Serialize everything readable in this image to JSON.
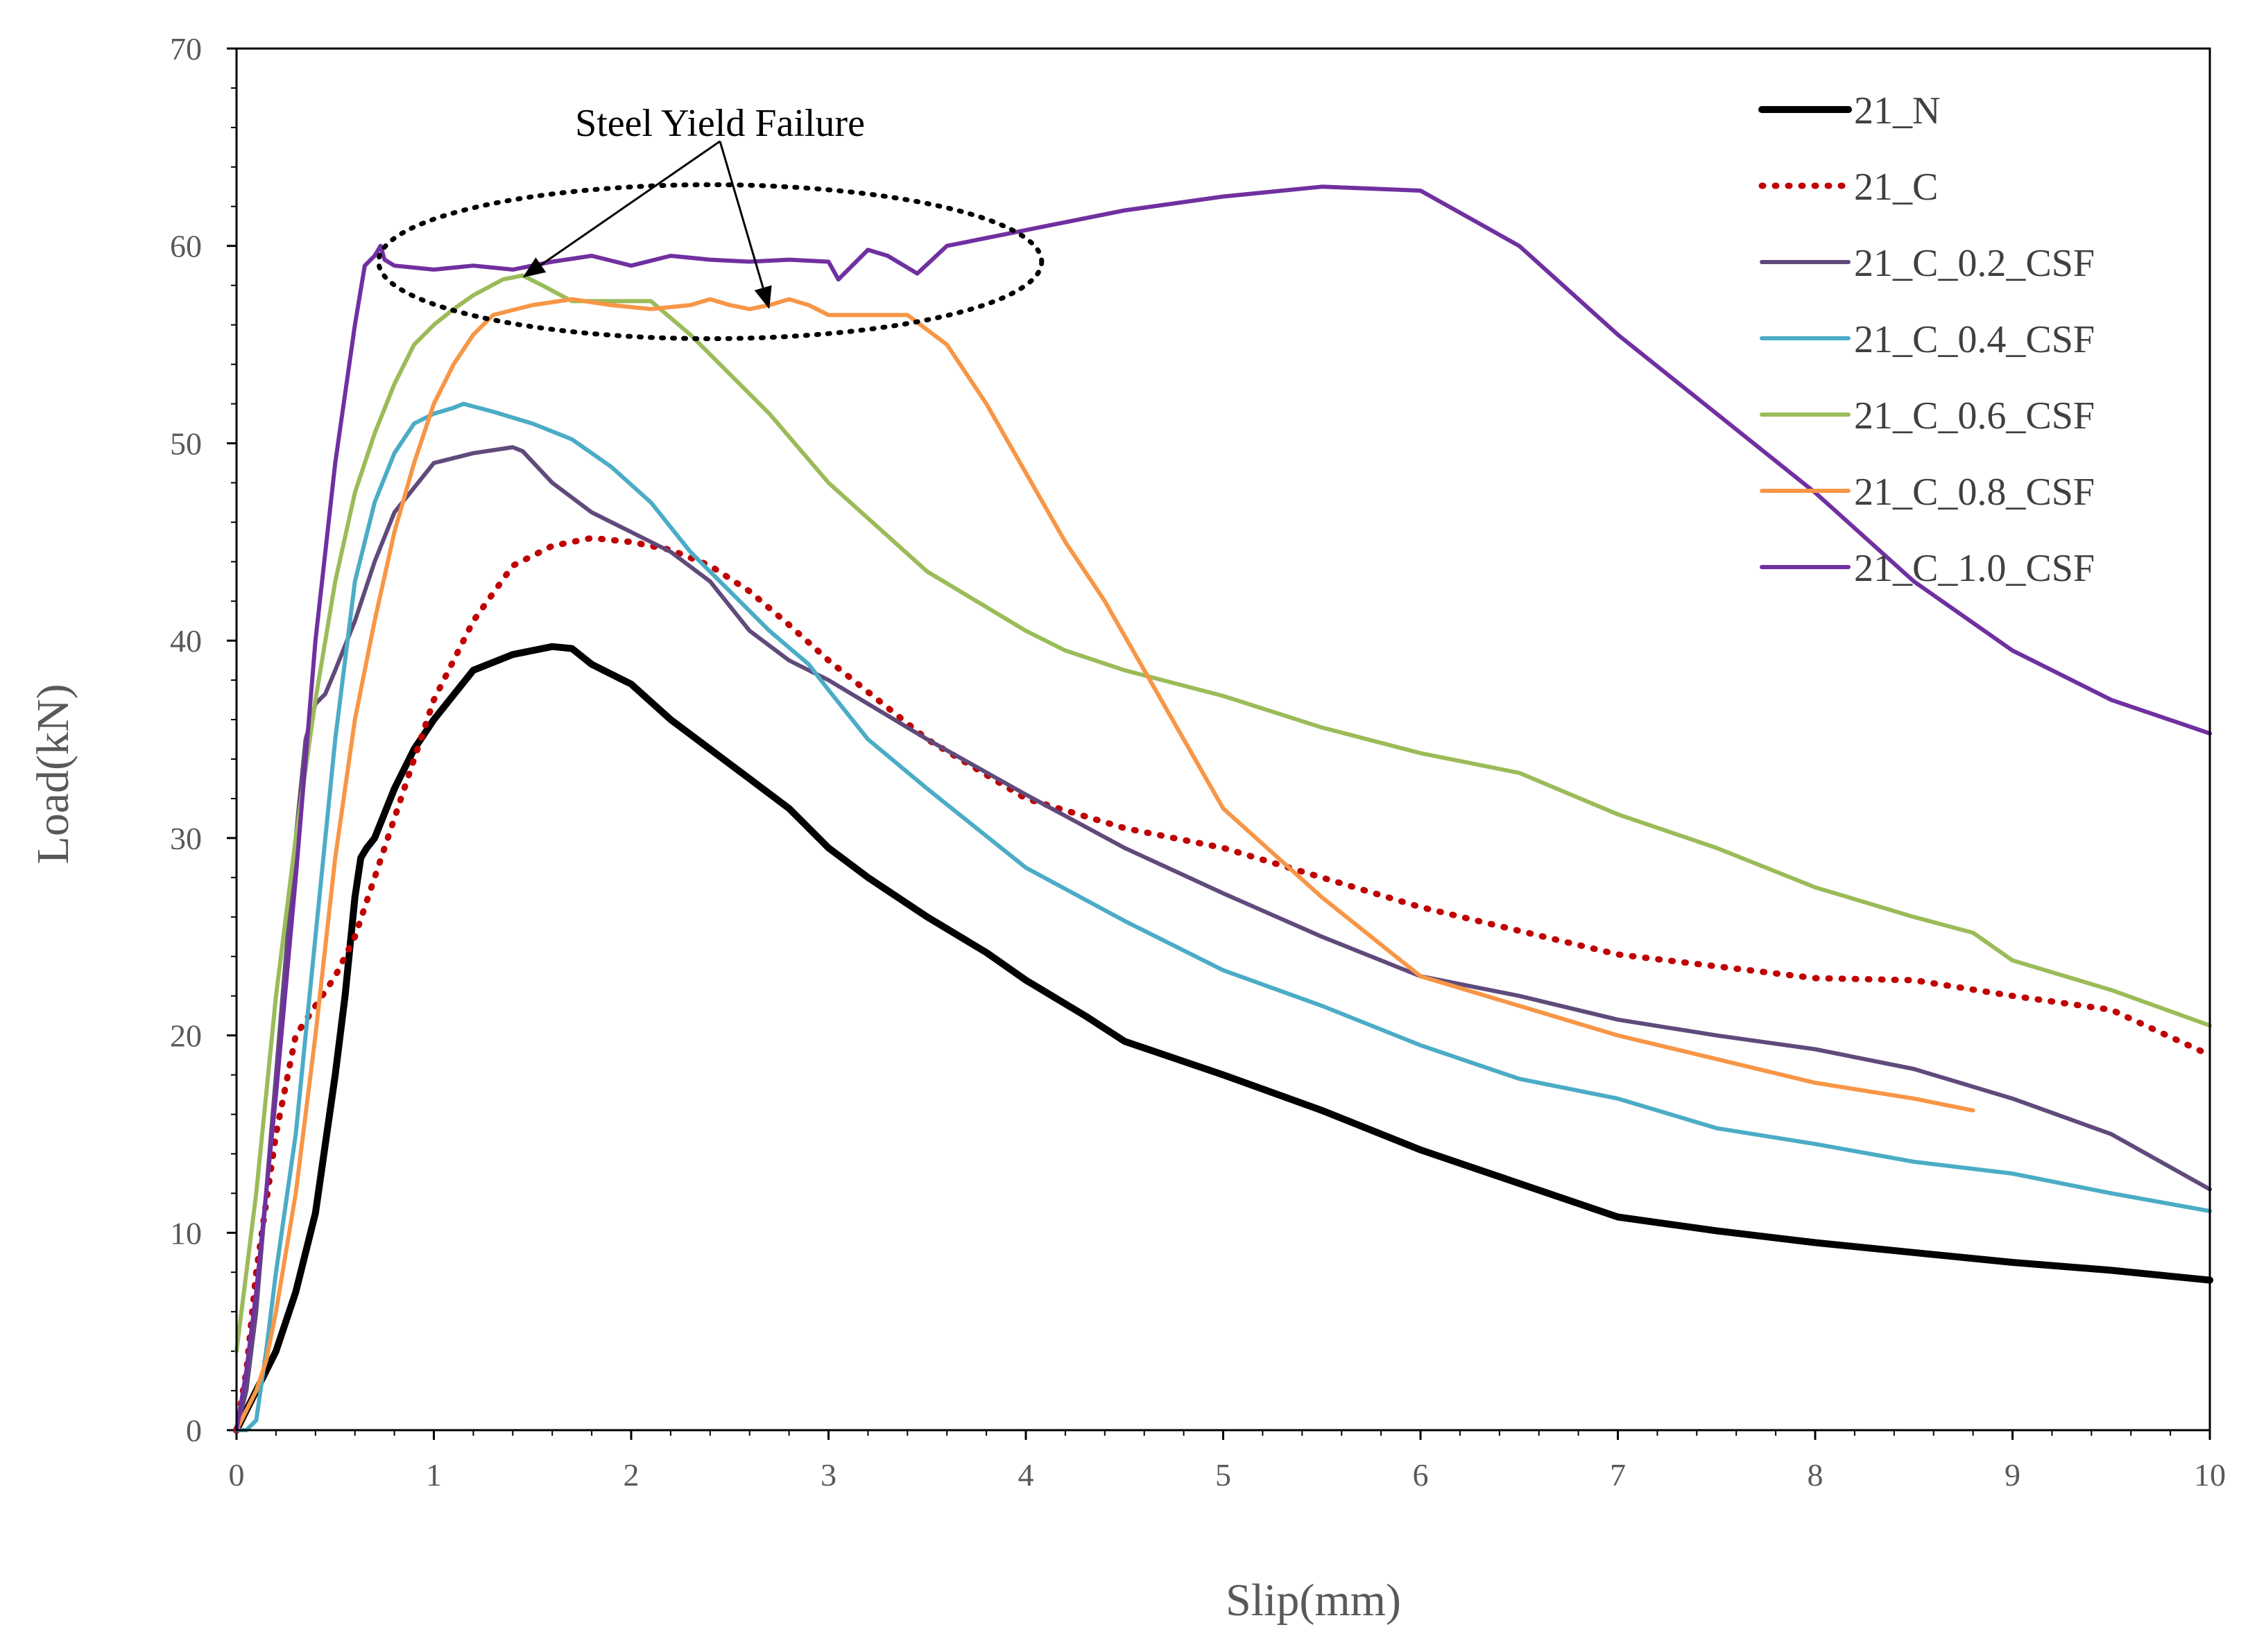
{
  "chart_data": {
    "type": "line",
    "title": "",
    "xlabel": "Slip(mm)",
    "ylabel": "Load(kN)",
    "xlim": [
      0,
      10
    ],
    "ylim": [
      0,
      70
    ],
    "x_ticks": [
      0,
      1,
      2,
      3,
      4,
      5,
      6,
      7,
      8,
      9,
      10
    ],
    "y_ticks": [
      0,
      10,
      20,
      30,
      40,
      50,
      60,
      70
    ],
    "grid": false,
    "legend_position": "top-right",
    "annotation": {
      "text": "Steel Yield Failure",
      "ellipse_center": [
        2.4,
        59.2
      ],
      "ellipse_radius": [
        1.68,
        3.9
      ],
      "arrow_from": [
        2.45,
        65.3
      ],
      "arrow_targets": [
        [
          1.45,
          58.4
        ],
        [
          2.7,
          56.8
        ]
      ]
    },
    "series": [
      {
        "name": "21_N",
        "color": "#000000",
        "style": "solid",
        "width": 10,
        "x": [
          0,
          0.1,
          0.2,
          0.3,
          0.4,
          0.5,
          0.55,
          0.6,
          0.63,
          0.66,
          0.7,
          0.8,
          0.9,
          1.0,
          1.2,
          1.4,
          1.6,
          1.7,
          1.8,
          2.0,
          2.2,
          2.4,
          2.6,
          2.8,
          3.0,
          3.2,
          3.5,
          3.8,
          4.0,
          4.3,
          4.5,
          5.0,
          5.5,
          6.0,
          6.5,
          7.0,
          7.5,
          8.0,
          8.5,
          9.0,
          9.5,
          10.0
        ],
        "y": [
          0,
          2,
          4,
          7,
          11,
          18,
          22,
          27,
          29,
          29.5,
          30,
          32.5,
          34.5,
          36,
          38.5,
          39.3,
          39.7,
          39.6,
          38.8,
          37.8,
          36,
          34.5,
          33,
          31.5,
          29.5,
          28,
          26,
          24.2,
          22.8,
          21,
          19.7,
          18,
          16.2,
          14.2,
          12.5,
          10.8,
          10.1,
          9.5,
          9.0,
          8.5,
          8.1,
          7.6
        ]
      },
      {
        "name": "21_C",
        "color": "#C00000",
        "style": "dotted",
        "width": 9,
        "x": [
          0,
          0.05,
          0.1,
          0.2,
          0.3,
          0.4,
          0.5,
          0.6,
          0.8,
          1.0,
          1.2,
          1.4,
          1.6,
          1.8,
          2.0,
          2.2,
          2.4,
          2.6,
          2.8,
          3.0,
          3.5,
          4.0,
          4.5,
          5.0,
          5.5,
          6.0,
          6.5,
          7.0,
          7.5,
          8.0,
          8.5,
          9.0,
          9.5,
          10.0
        ],
        "y": [
          0,
          3,
          8,
          15,
          20,
          21.5,
          23,
          25,
          31,
          37,
          41,
          43.8,
          44.8,
          45.2,
          45,
          44.6,
          43.8,
          42.5,
          40.8,
          39,
          35,
          32,
          30.5,
          29.5,
          28,
          26.5,
          25.3,
          24.1,
          23.5,
          22.9,
          22.8,
          22,
          21.3,
          19
        ]
      },
      {
        "name": "21_C_0.2_CSF",
        "color": "#604A7B",
        "style": "solid",
        "width": 6,
        "x": [
          0,
          0.05,
          0.1,
          0.2,
          0.3,
          0.35,
          0.4,
          0.45,
          0.5,
          0.6,
          0.7,
          0.8,
          1.0,
          1.2,
          1.4,
          1.45,
          1.6,
          1.8,
          2.0,
          2.2,
          2.4,
          2.6,
          2.8,
          3.0,
          3.5,
          4.0,
          4.5,
          5.0,
          5.5,
          6.0,
          6.5,
          7.0,
          7.5,
          8.0,
          8.5,
          9.0,
          9.5,
          10.0
        ],
        "y": [
          0,
          2,
          6,
          18,
          30,
          35,
          36.8,
          37.3,
          38.5,
          41,
          44,
          46.5,
          49,
          49.5,
          49.8,
          49.6,
          48,
          46.5,
          45.5,
          44.5,
          43,
          40.5,
          39,
          38,
          35,
          32.2,
          29.5,
          27.2,
          25,
          23,
          22,
          20.8,
          20,
          19.3,
          18.3,
          16.8,
          15,
          12.2
        ]
      },
      {
        "name": "21_C_0.4_CSF",
        "color": "#4BACC6",
        "style": "solid",
        "width": 6,
        "x": [
          0,
          0.05,
          0.1,
          0.15,
          0.2,
          0.3,
          0.4,
          0.5,
          0.6,
          0.7,
          0.8,
          0.9,
          1.0,
          1.1,
          1.15,
          1.3,
          1.5,
          1.7,
          1.9,
          2.1,
          2.3,
          2.5,
          2.7,
          2.9,
          3.0,
          3.2,
          3.5,
          4.0,
          4.5,
          5.0,
          5.5,
          6.0,
          6.5,
          7.0,
          7.5,
          8.0,
          8.5,
          9.0,
          9.5,
          10.0
        ],
        "y": [
          0,
          0,
          0.5,
          4,
          8,
          15,
          25,
          35,
          43,
          47,
          49.5,
          51,
          51.5,
          51.8,
          52,
          51.6,
          51,
          50.2,
          48.8,
          47,
          44.5,
          42.5,
          40.5,
          38.8,
          37.5,
          35,
          32.5,
          28.5,
          25.8,
          23.3,
          21.5,
          19.5,
          17.8,
          16.8,
          15.3,
          14.5,
          13.6,
          13,
          12,
          11.1
        ]
      },
      {
        "name": "21_C_0.6_CSF",
        "color": "#9BBB59",
        "style": "solid",
        "width": 6,
        "x": [
          0,
          0.05,
          0.1,
          0.15,
          0.2,
          0.3,
          0.4,
          0.5,
          0.6,
          0.7,
          0.8,
          0.9,
          1.0,
          1.1,
          1.2,
          1.35,
          1.45,
          1.55,
          1.7,
          1.9,
          2.1,
          2.3,
          2.5,
          2.7,
          3.0,
          3.5,
          4.0,
          4.2,
          4.5,
          5.0,
          5.5,
          6.0,
          6.5,
          7.0,
          7.5,
          8.0,
          8.5,
          8.8,
          9.0,
          9.5,
          10.0
        ],
        "y": [
          4,
          8,
          12,
          17,
          22,
          30,
          37,
          43,
          47.5,
          50.5,
          53,
          55,
          56,
          56.8,
          57.5,
          58.3,
          58.5,
          58,
          57.2,
          57.2,
          57.2,
          55.5,
          53.5,
          51.5,
          48,
          43.5,
          40.5,
          39.5,
          38.5,
          37.2,
          35.6,
          34.3,
          33.3,
          31.2,
          29.5,
          27.5,
          26,
          25.2,
          23.8,
          22.3,
          20.5
        ]
      },
      {
        "name": "21_C_0.8_CSF",
        "color": "#F79646",
        "style": "solid",
        "width": 6,
        "x": [
          0,
          0.05,
          0.1,
          0.15,
          0.2,
          0.3,
          0.4,
          0.5,
          0.6,
          0.7,
          0.8,
          0.9,
          1.0,
          1.1,
          1.2,
          1.3,
          1.5,
          1.7,
          1.9,
          2.1,
          2.3,
          2.4,
          2.5,
          2.6,
          2.7,
          2.8,
          2.9,
          3.0,
          3.2,
          3.4,
          3.6,
          3.8,
          4.0,
          4.2,
          4.4,
          4.6,
          4.8,
          5.0,
          5.5,
          6.0,
          6.5,
          7.0,
          7.5,
          8.0,
          8.5,
          8.8
        ],
        "y": [
          0,
          1,
          2,
          3.5,
          6,
          12,
          20,
          29,
          36,
          41,
          45.5,
          49,
          52,
          54,
          55.5,
          56.5,
          57,
          57.3,
          57,
          56.8,
          57,
          57.3,
          57,
          56.8,
          57,
          57.3,
          57,
          56.5,
          56.5,
          56.5,
          55,
          52,
          48.5,
          45,
          42,
          38.5,
          35,
          31.5,
          27,
          23,
          21.5,
          20,
          18.8,
          17.6,
          16.8,
          16.2
        ]
      },
      {
        "name": "21_C_1.0_CSF",
        "color": "#7030A0",
        "style": "solid",
        "width": 6,
        "x": [
          0,
          0.05,
          0.1,
          0.2,
          0.3,
          0.4,
          0.5,
          0.6,
          0.65,
          0.7,
          0.73,
          0.75,
          0.8,
          1.0,
          1.2,
          1.4,
          1.6,
          1.8,
          2.0,
          2.2,
          2.4,
          2.6,
          2.8,
          3.0,
          3.05,
          3.2,
          3.3,
          3.45,
          3.6,
          4.0,
          4.5,
          5.0,
          5.5,
          6.0,
          6.5,
          7.0,
          7.5,
          8.0,
          8.5,
          9.0,
          9.5,
          10.0
        ],
        "y": [
          0,
          3,
          7,
          17,
          28,
          40,
          49,
          56,
          59,
          59.5,
          60,
          59.3,
          59,
          58.8,
          59,
          58.8,
          59.2,
          59.5,
          59,
          59.5,
          59.3,
          59.2,
          59.3,
          59.2,
          58.3,
          59.8,
          59.5,
          58.6,
          60,
          60.8,
          61.8,
          62.5,
          63,
          62.8,
          60,
          55.5,
          51.5,
          47.5,
          43,
          39.5,
          37,
          35.3
        ]
      }
    ]
  }
}
